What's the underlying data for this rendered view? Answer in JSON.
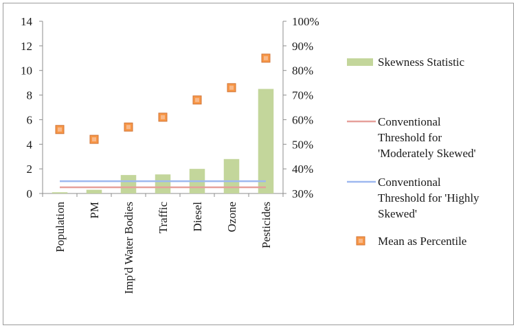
{
  "chart_data": {
    "type": "bar",
    "categories": [
      "Population",
      "PM",
      "Imp'd Water Bodies",
      "Traffic",
      "Diesel",
      "Ozone",
      "Pesticides"
    ],
    "y_left": {
      "ticks": [
        "0",
        "2",
        "4",
        "6",
        "8",
        "10",
        "12",
        "14"
      ],
      "ylim": [
        0,
        14
      ]
    },
    "y_right": {
      "ticks": [
        "30%",
        "40%",
        "50%",
        "60%",
        "70%",
        "80%",
        "90%",
        "100%"
      ],
      "ylim": [
        30,
        100
      ]
    },
    "series": [
      {
        "name": "Skewness Statistic",
        "type": "bar",
        "axis": "left",
        "color": "#c3d69b",
        "values": [
          0.1,
          0.3,
          1.5,
          1.55,
          2.0,
          2.8,
          8.5
        ]
      },
      {
        "name": "Conventional Threshold for 'Moderately Skewed'",
        "type": "line",
        "axis": "left",
        "color": "#e6a09a",
        "values": [
          0.5,
          0.5,
          0.5,
          0.5,
          0.5,
          0.5,
          0.5
        ]
      },
      {
        "name": "Conventional Threshold for 'Highly Skewed'",
        "type": "line",
        "axis": "left",
        "color": "#9db8ef",
        "values": [
          1.0,
          1.0,
          1.0,
          1.0,
          1.0,
          1.0,
          1.0
        ]
      },
      {
        "name": "Mean as Percentile",
        "type": "scatter",
        "axis": "right",
        "color": "#f79646",
        "values": [
          56,
          52,
          57,
          61,
          68,
          73,
          85
        ]
      }
    ],
    "legend": {
      "position": "right",
      "items": [
        {
          "lines": [
            "Skewness Statistic"
          ]
        },
        {
          "lines": [
            "Conventional",
            "Threshold for",
            "'Moderately Skewed'"
          ]
        },
        {
          "lines": [
            "Conventional",
            "Threshold for 'Highly",
            "Skewed'"
          ]
        },
        {
          "lines": [
            "Mean as Percentile"
          ]
        }
      ]
    },
    "grid": false
  }
}
